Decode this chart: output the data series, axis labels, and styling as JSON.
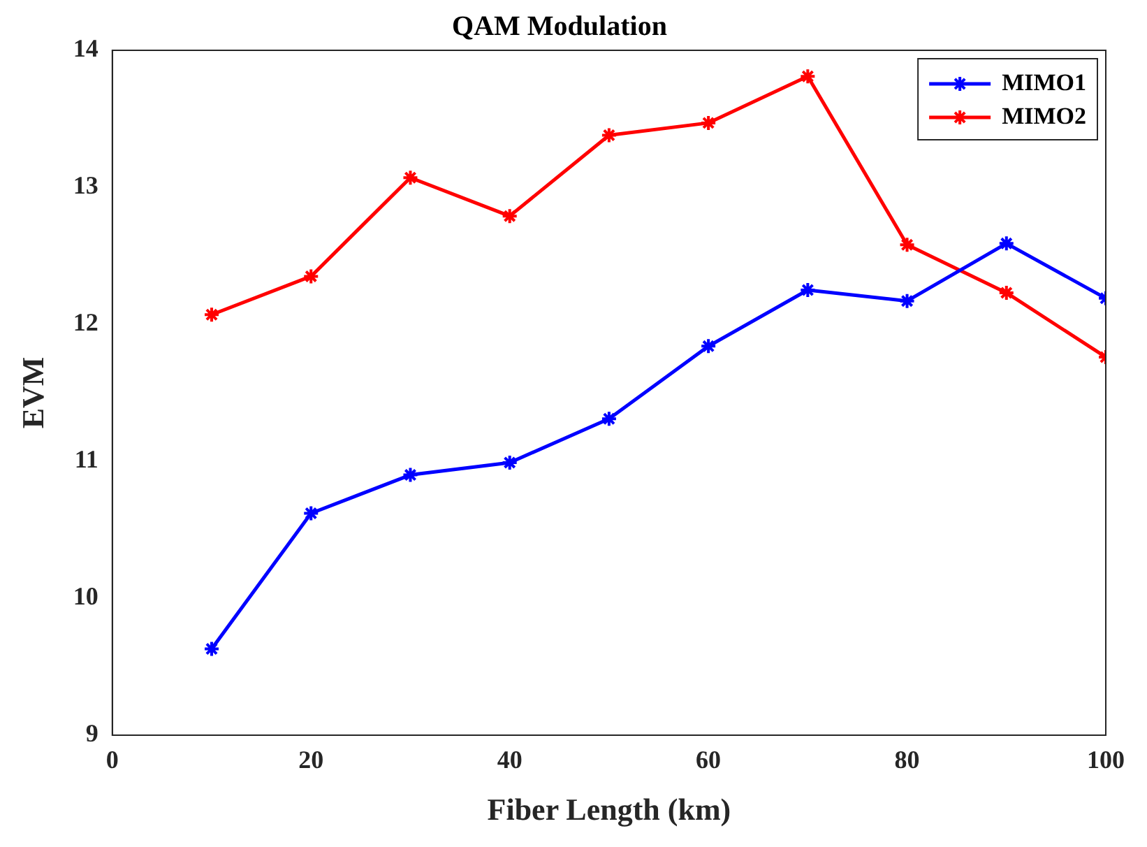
{
  "chart_data": {
    "type": "line",
    "title": "QAM Modulation",
    "xlabel": "Fiber Length (km)",
    "ylabel": "EVM",
    "x": [
      10,
      20,
      30,
      40,
      50,
      60,
      70,
      80,
      90,
      100
    ],
    "series": [
      {
        "name": "MIMO1",
        "color": "#0000ff",
        "values": [
          9.63,
          10.62,
          10.9,
          10.99,
          11.31,
          11.84,
          12.25,
          12.17,
          12.59,
          12.19
        ]
      },
      {
        "name": "MIMO2",
        "color": "#ff0000",
        "values": [
          12.07,
          12.35,
          13.07,
          12.79,
          13.38,
          13.47,
          13.81,
          12.58,
          12.23,
          11.76
        ]
      }
    ],
    "xlim": [
      0,
      100
    ],
    "xticks": [
      0,
      20,
      40,
      60,
      80,
      100
    ],
    "ylim": [
      9,
      14
    ],
    "yticks": [
      9,
      10,
      11,
      12,
      13,
      14
    ],
    "grid": false,
    "legend": "top right",
    "marker": "cross",
    "line_style": "solid"
  }
}
